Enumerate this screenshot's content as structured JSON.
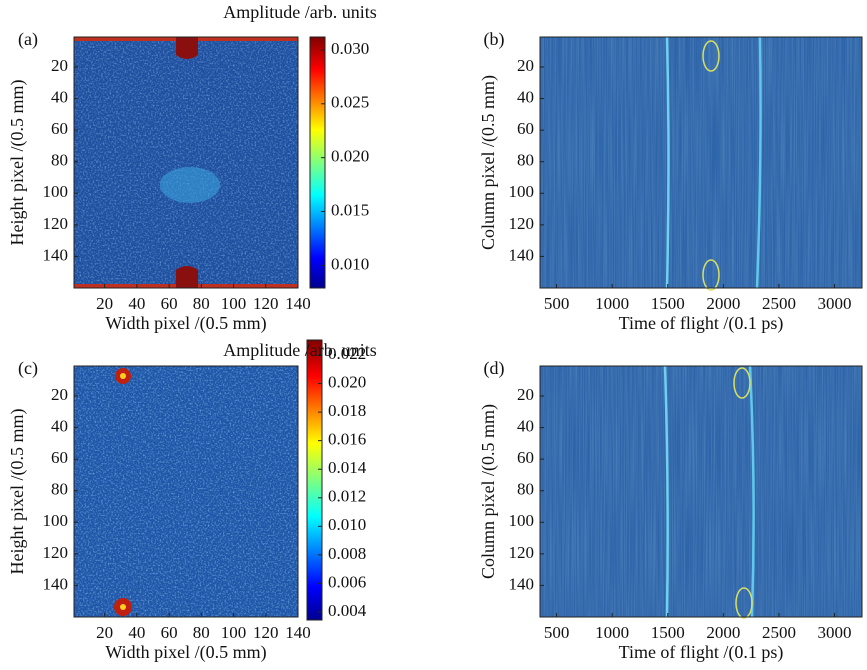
{
  "chart_data": [
    {
      "type": "heatmap",
      "panel_label": "(a)",
      "xlabel": "Width pixel /(0.5 mm)",
      "ylabel": "Height pixel /(0.5 mm)",
      "xlim": [
        1,
        140
      ],
      "ylim": [
        1,
        160
      ],
      "xticks": [
        20,
        40,
        60,
        80,
        100,
        120,
        140
      ],
      "yticks": [
        20,
        40,
        60,
        80,
        100,
        120,
        140
      ],
      "colorbar_label": "Amplitude /arb. units",
      "clim": [
        0.0079,
        0.0312
      ],
      "cticks": [
        {
          "value": 0.01,
          "label": "0.010"
        },
        0.015,
        {
          "value": 0.02,
          "label": "0.020"
        },
        0.025,
        {
          "value": 0.03,
          "label": "0.030"
        }
      ]
    },
    {
      "type": "heatmap",
      "panel_label": "(b)",
      "xlabel": "Time of flight /(0.1 ps)",
      "ylabel": "Column pixel /(0.5 mm)",
      "xlim": [
        351,
        3247
      ],
      "ylim": [
        1,
        160
      ],
      "xticks": [
        500,
        1000,
        1500,
        2000,
        2500,
        3000
      ],
      "yticks": [
        20,
        40,
        60,
        80,
        100,
        120,
        140
      ]
    },
    {
      "type": "heatmap",
      "panel_label": "(c)",
      "xlabel": "Width pixel /(0.5 mm)",
      "ylabel": "Height pixel /(0.5 mm)",
      "xlim": [
        1,
        140
      ],
      "ylim": [
        1,
        160
      ],
      "xticks": [
        20,
        40,
        60,
        80,
        100,
        120,
        140
      ],
      "yticks": [
        20,
        40,
        60,
        80,
        100,
        120,
        140
      ],
      "colorbar_label": "Amplitude /arb. units",
      "clim": [
        0.00344,
        0.02305
      ],
      "cticks": [
        0.004,
        0.006,
        0.008,
        {
          "value": 0.01,
          "label": "0.010"
        },
        0.012,
        0.014,
        0.016,
        0.018,
        {
          "value": 0.02,
          "label": "0.020"
        },
        0.022
      ]
    },
    {
      "type": "heatmap",
      "panel_label": "(d)",
      "xlabel": "Time of flight /(0.1 ps)",
      "ylabel": "Column pixel /(0.5 mm)",
      "xlim": [
        351,
        3247
      ],
      "ylim": [
        1,
        160
      ],
      "xticks": [
        500,
        1000,
        1500,
        2000,
        2500,
        3000
      ],
      "yticks": [
        20,
        40,
        60,
        80,
        100,
        120,
        140
      ]
    }
  ]
}
